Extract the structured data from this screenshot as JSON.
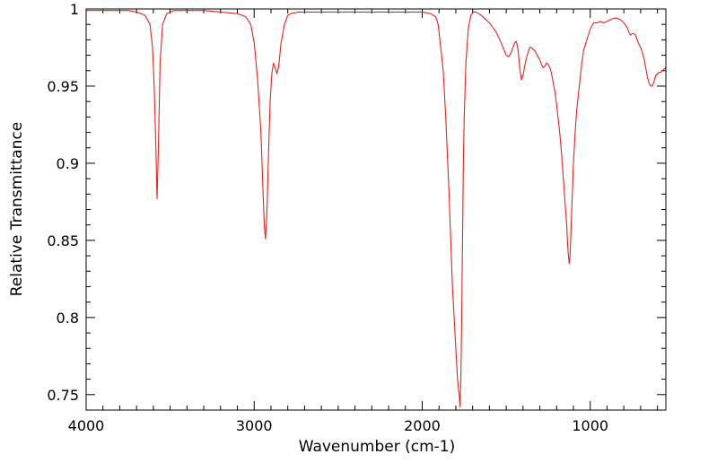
{
  "chart_data": {
    "type": "line",
    "xlabel": "Wavenumber (cm-1)",
    "ylabel": "Relative Transmittance",
    "xlim": [
      4000,
      550
    ],
    "ylim": [
      0.74,
      1.0
    ],
    "x_reversed": true,
    "grid": false,
    "legend": "none",
    "x_ticks": [
      {
        "value": 4000,
        "label": "4000"
      },
      {
        "value": 3000,
        "label": "3000"
      },
      {
        "value": 2000,
        "label": "2000"
      },
      {
        "value": 1000,
        "label": "1000"
      }
    ],
    "y_ticks": [
      {
        "value": 1.0,
        "label": "1"
      },
      {
        "value": 0.95,
        "label": "0.95"
      },
      {
        "value": 0.9,
        "label": "0.9"
      },
      {
        "value": 0.85,
        "label": "0.85"
      },
      {
        "value": 0.8,
        "label": "0.8"
      },
      {
        "value": 0.75,
        "label": "0.75"
      }
    ],
    "series": [
      {
        "color": "#e8231f",
        "x": [
          4000,
          3900,
          3800,
          3750,
          3700,
          3650,
          3620,
          3605,
          3595,
          3585,
          3578,
          3570,
          3560,
          3545,
          3520,
          3480,
          3400,
          3300,
          3200,
          3100,
          3050,
          3020,
          3000,
          2980,
          2960,
          2950,
          2940,
          2933,
          2925,
          2915,
          2905,
          2895,
          2885,
          2875,
          2865,
          2855,
          2840,
          2820,
          2800,
          2780,
          2740,
          2700,
          2600,
          2500,
          2400,
          2300,
          2200,
          2100,
          2000,
          1950,
          1920,
          1905,
          1900,
          1890,
          1875,
          1860,
          1840,
          1820,
          1800,
          1790,
          1780,
          1775,
          1770,
          1765,
          1760,
          1755,
          1750,
          1740,
          1725,
          1710,
          1695,
          1680,
          1665,
          1650,
          1630,
          1600,
          1560,
          1530,
          1500,
          1485,
          1470,
          1460,
          1450,
          1440,
          1430,
          1420,
          1410,
          1400,
          1390,
          1380,
          1370,
          1360,
          1350,
          1340,
          1330,
          1320,
          1310,
          1300,
          1290,
          1280,
          1270,
          1260,
          1250,
          1240,
          1230,
          1220,
          1210,
          1200,
          1190,
          1180,
          1170,
          1160,
          1150,
          1140,
          1135,
          1130,
          1125,
          1120,
          1110,
          1100,
          1090,
          1080,
          1070,
          1060,
          1050,
          1040,
          1020,
          1000,
          980,
          960,
          940,
          920,
          900,
          880,
          860,
          840,
          820,
          800,
          780,
          770,
          760,
          750,
          740,
          730,
          720,
          710,
          700,
          690,
          680,
          670,
          660,
          650,
          640,
          630,
          620,
          610,
          600,
          590,
          580,
          570,
          560,
          550
        ],
        "y": [
          0.999,
          0.999,
          0.999,
          0.999,
          0.998,
          0.996,
          0.99,
          0.975,
          0.95,
          0.91,
          0.877,
          0.91,
          0.965,
          0.99,
          0.997,
          0.999,
          0.999,
          0.999,
          0.998,
          0.997,
          0.995,
          0.99,
          0.978,
          0.955,
          0.92,
          0.89,
          0.86,
          0.851,
          0.865,
          0.905,
          0.94,
          0.958,
          0.965,
          0.962,
          0.958,
          0.962,
          0.978,
          0.99,
          0.996,
          0.997,
          0.998,
          0.998,
          0.998,
          0.998,
          0.998,
          0.998,
          0.998,
          0.998,
          0.998,
          0.997,
          0.995,
          0.99,
          0.985,
          0.975,
          0.96,
          0.93,
          0.88,
          0.82,
          0.78,
          0.76,
          0.75,
          0.742,
          0.76,
          0.8,
          0.85,
          0.9,
          0.93,
          0.965,
          0.988,
          0.996,
          0.998,
          0.998,
          0.997,
          0.996,
          0.994,
          0.991,
          0.985,
          0.978,
          0.97,
          0.969,
          0.972,
          0.975,
          0.978,
          0.979,
          0.974,
          0.962,
          0.954,
          0.957,
          0.963,
          0.968,
          0.972,
          0.975,
          0.975,
          0.974,
          0.973,
          0.971,
          0.969,
          0.967,
          0.964,
          0.962,
          0.963,
          0.965,
          0.964,
          0.962,
          0.958,
          0.952,
          0.946,
          0.938,
          0.928,
          0.918,
          0.905,
          0.89,
          0.875,
          0.86,
          0.848,
          0.84,
          0.835,
          0.84,
          0.87,
          0.9,
          0.92,
          0.935,
          0.945,
          0.955,
          0.965,
          0.973,
          0.98,
          0.987,
          0.991,
          0.991,
          0.992,
          0.991,
          0.992,
          0.993,
          0.994,
          0.994,
          0.993,
          0.991,
          0.988,
          0.985,
          0.983,
          0.984,
          0.984,
          0.983,
          0.98,
          0.977,
          0.975,
          0.972,
          0.968,
          0.962,
          0.956,
          0.952,
          0.95,
          0.95,
          0.953,
          0.957,
          0.958,
          0.959,
          0.959,
          0.96,
          0.961,
          0.962
        ]
      }
    ]
  }
}
